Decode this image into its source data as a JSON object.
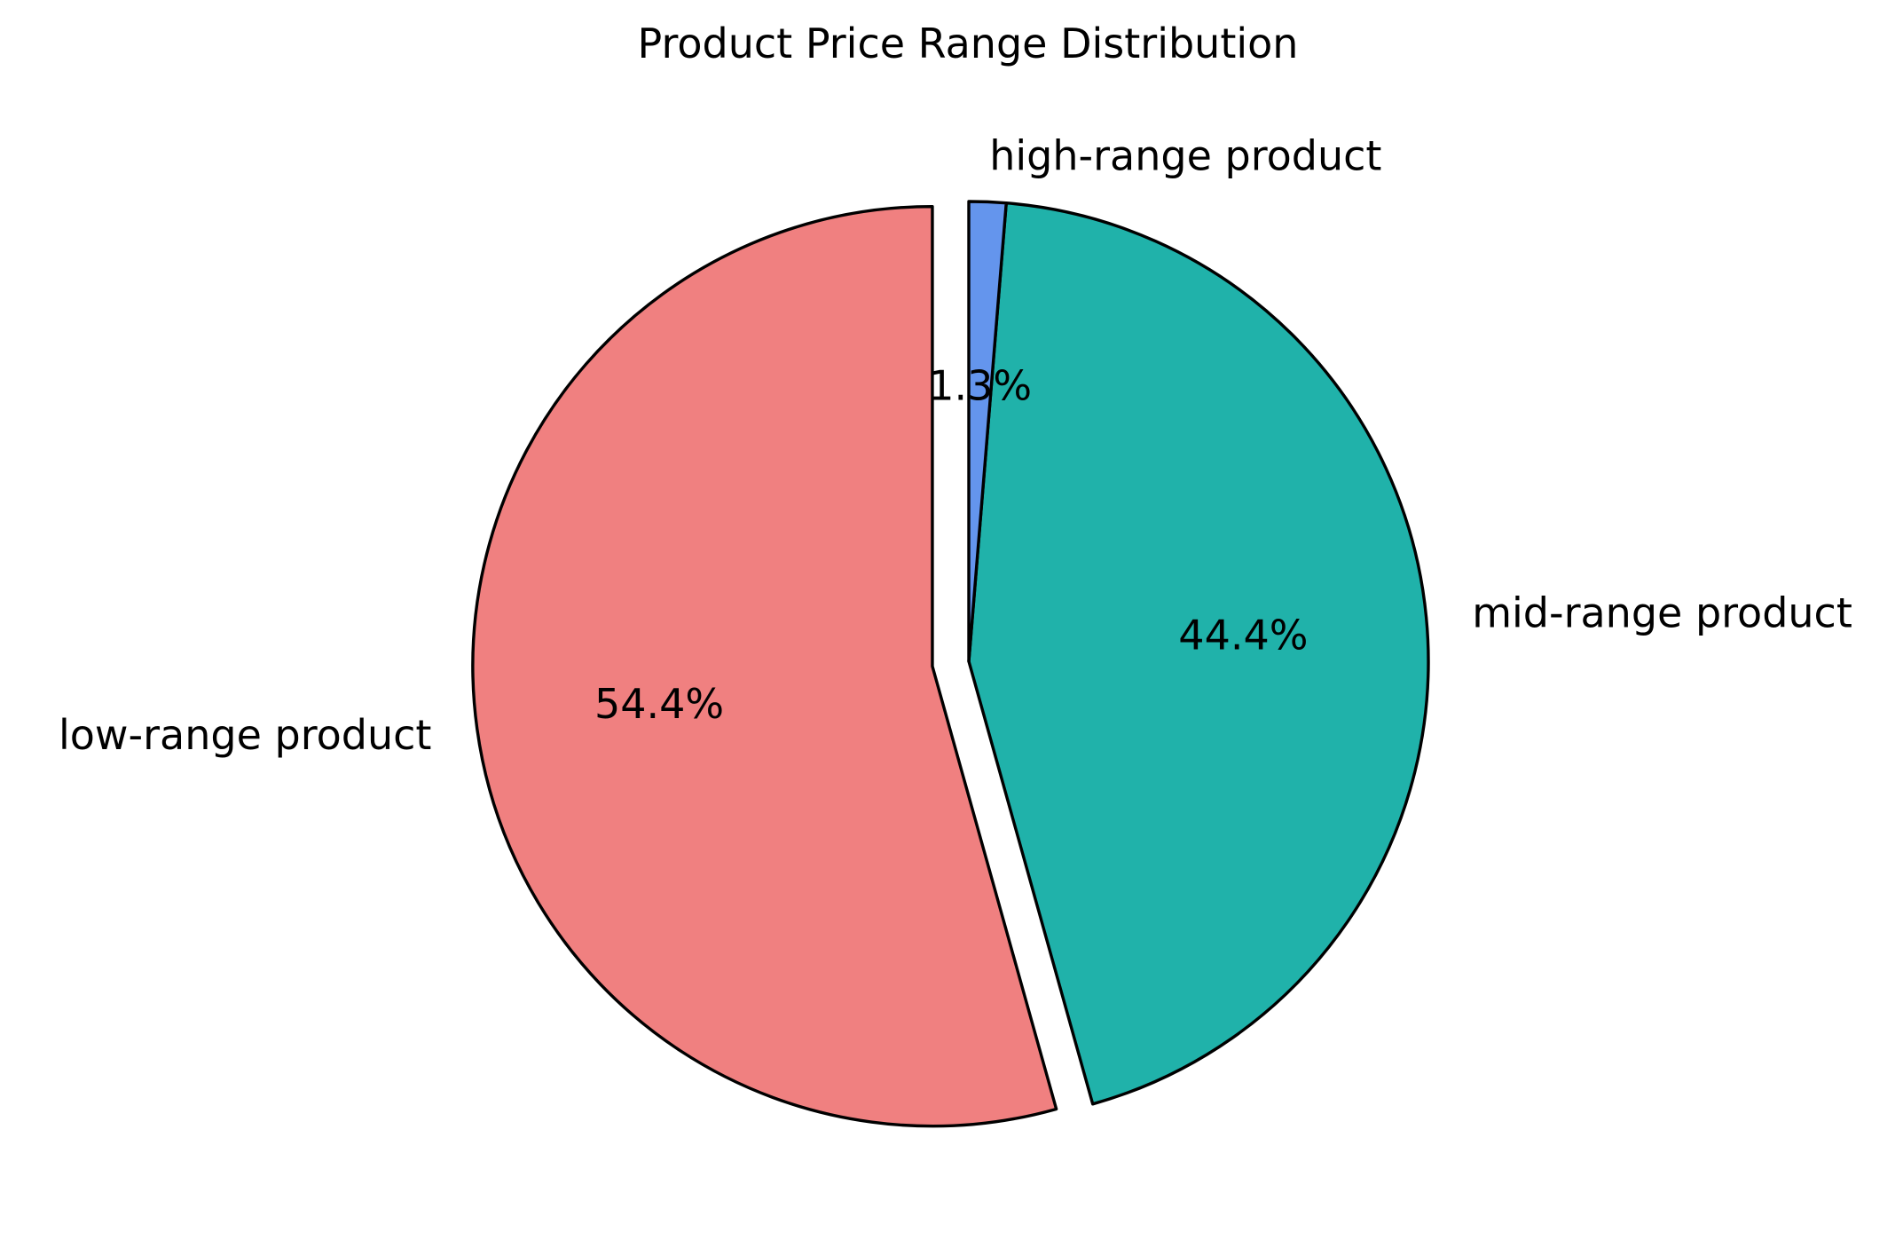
{
  "chart_data": {
    "type": "pie",
    "title": "Product Price Range Distribution",
    "slices": [
      {
        "label": "low-range product",
        "value": 54.4,
        "pct_label": "54.4%",
        "color": "#f08080",
        "exploded": true
      },
      {
        "label": "mid-range product",
        "value": 44.4,
        "pct_label": "44.4%",
        "color": "#20b2aa",
        "exploded": false
      },
      {
        "label": "high-range product",
        "value": 1.3,
        "pct_label": "1.3%",
        "color": "#6495ed",
        "exploded": false
      }
    ],
    "start_angle_deg": 90,
    "direction": "counterclockwise",
    "edge_color": "#000000",
    "legend": "none"
  }
}
